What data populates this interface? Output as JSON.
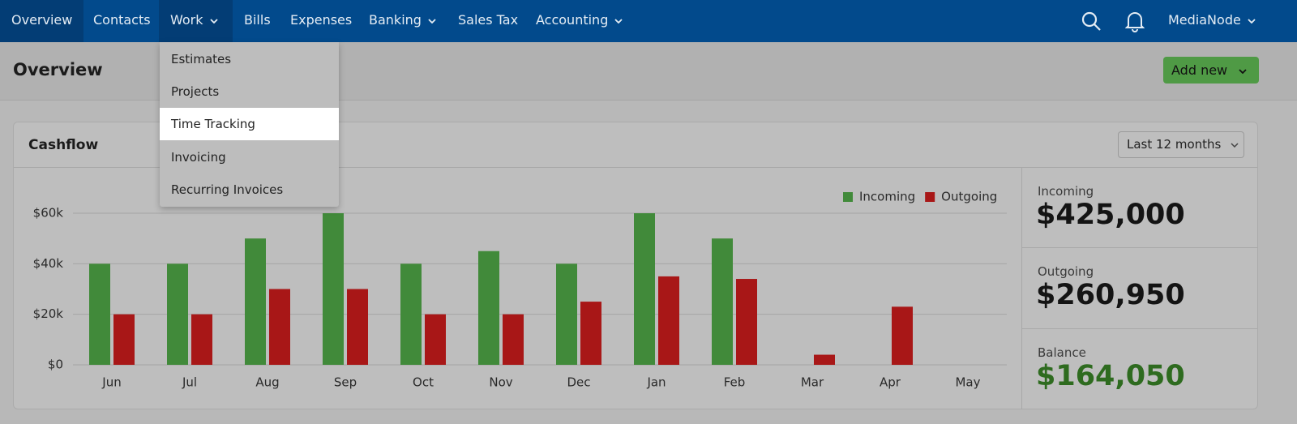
{
  "nav": {
    "items": [
      "Overview",
      "Contacts",
      "Work",
      "Bills",
      "Expenses",
      "Banking",
      "Sales Tax",
      "Accounting"
    ],
    "account": "MediaNode"
  },
  "work_menu": {
    "items": [
      "Estimates",
      "Projects",
      "Time Tracking",
      "Invoicing",
      "Recurring Invoices"
    ]
  },
  "header": {
    "title": "Overview",
    "button": "Add new"
  },
  "card": {
    "title": "Cashflow",
    "period": "Last 12 months"
  },
  "chart_data": {
    "type": "bar",
    "categories": [
      "Jun",
      "Jul",
      "Aug",
      "Sep",
      "Oct",
      "Nov",
      "Dec",
      "Jan",
      "Feb",
      "Mar",
      "Apr",
      "May"
    ],
    "series": [
      {
        "name": "Incoming",
        "color": "#418a3a",
        "values": [
          40000,
          40000,
          50000,
          60000,
          40000,
          45000,
          40000,
          60000,
          50000,
          0,
          0,
          0
        ]
      },
      {
        "name": "Outgoing",
        "color": "#a81717",
        "values": [
          20000,
          20000,
          30000,
          30000,
          20000,
          20000,
          25000,
          35000,
          34000,
          4000,
          23000,
          0
        ]
      }
    ],
    "ylim": [
      0,
      60000
    ],
    "yticks": [
      {
        "value": 0,
        "label": "$0"
      },
      {
        "value": 20000,
        "label": "$20k"
      },
      {
        "value": 40000,
        "label": "$40k"
      },
      {
        "value": 60000,
        "label": "$60k"
      }
    ],
    "grid": true,
    "legend": "top-right"
  },
  "summary": [
    {
      "label": "Incoming",
      "value": "$425,000"
    },
    {
      "label": "Outgoing",
      "value": "$260,950"
    },
    {
      "label": "Balance",
      "value": "$164,050"
    }
  ]
}
